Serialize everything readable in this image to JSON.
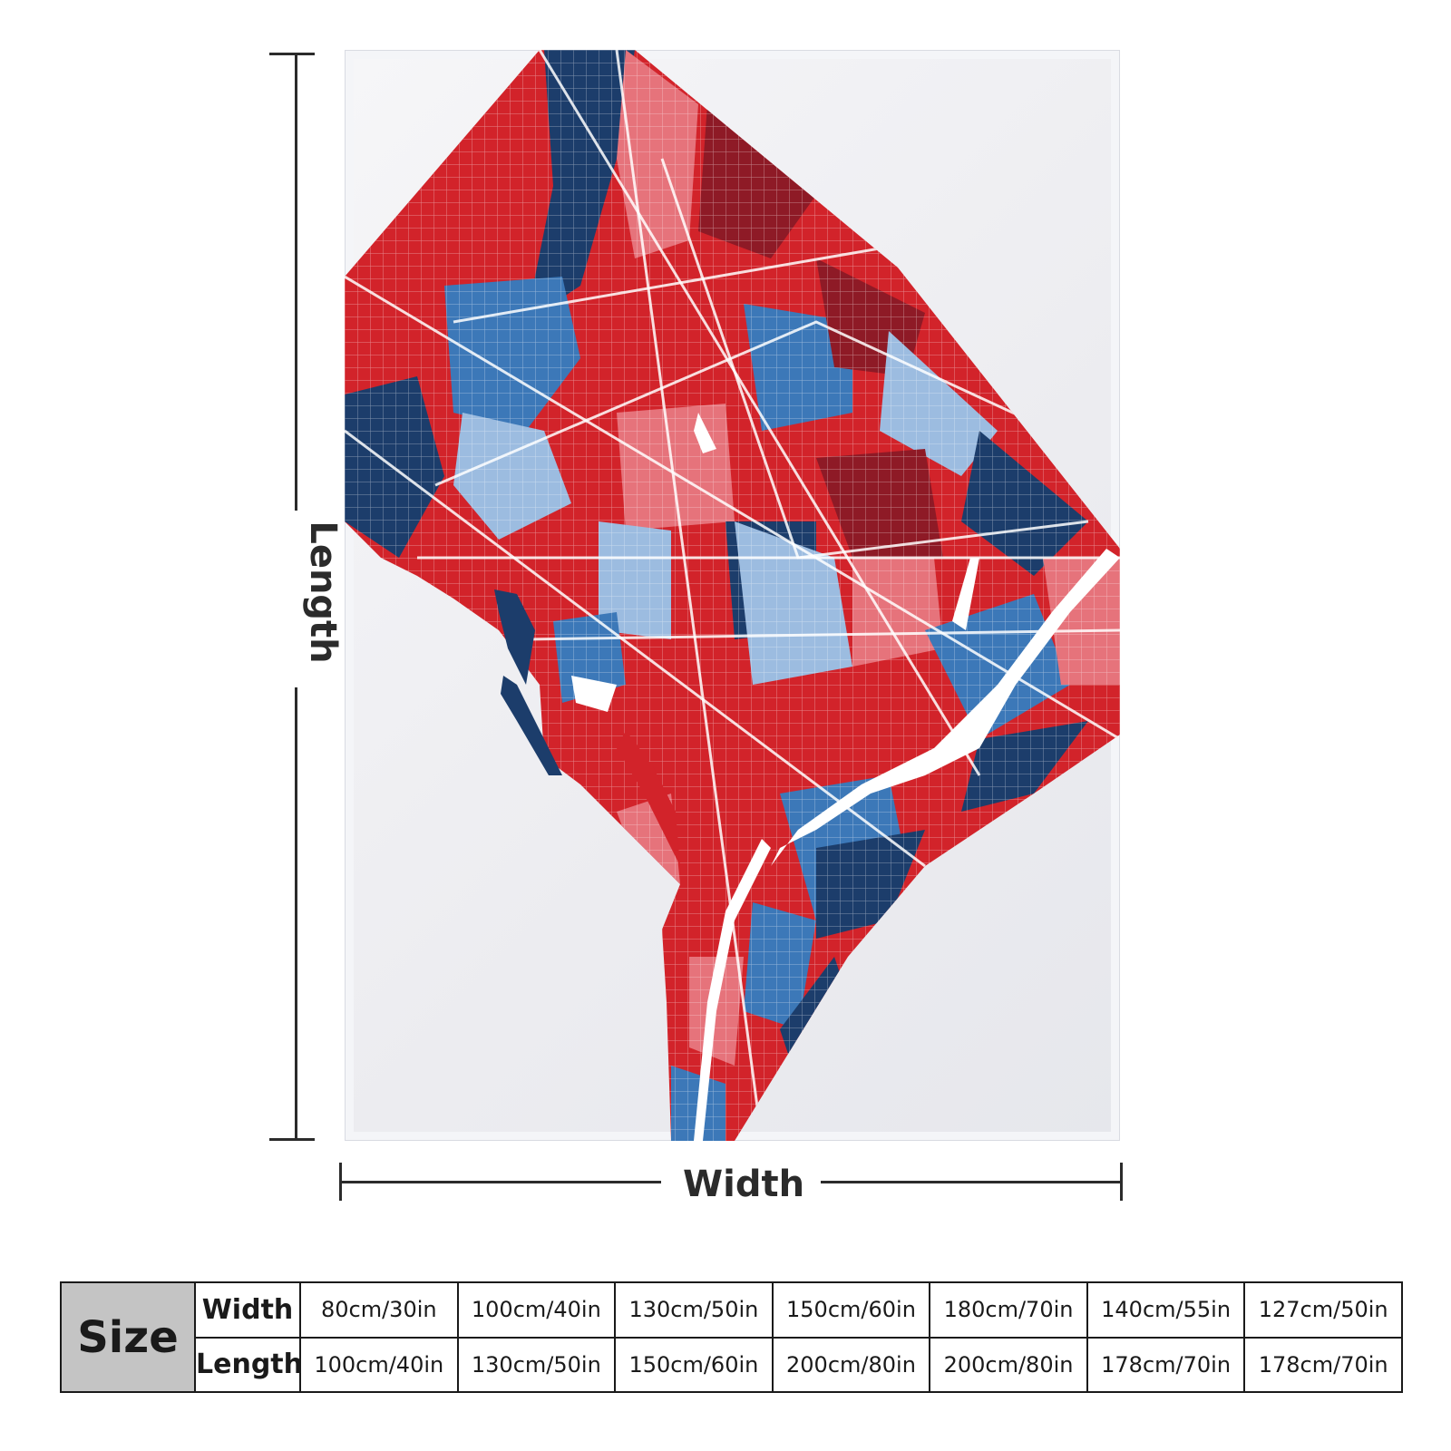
{
  "diagram": {
    "length_label": "Length",
    "width_label": "Width"
  },
  "colors": {
    "red": "#d2232a",
    "light_red": "#e6737b",
    "dark_red": "#8e1a26",
    "blue": "#3c78b8",
    "light_blue": "#9cbce0",
    "navy": "#1c3d6b",
    "water": "#ffffff"
  },
  "size_table": {
    "header": "Size",
    "width_label": "Width",
    "length_label": "Length",
    "widths": [
      "80cm/30in",
      "100cm/40in",
      "130cm/50in",
      "150cm/60in",
      "180cm/70in",
      "140cm/55in",
      "127cm/50in"
    ],
    "lengths": [
      "100cm/40in",
      "130cm/50in",
      "150cm/60in",
      "200cm/80in",
      "200cm/80in",
      "178cm/70in",
      "178cm/70in"
    ]
  }
}
